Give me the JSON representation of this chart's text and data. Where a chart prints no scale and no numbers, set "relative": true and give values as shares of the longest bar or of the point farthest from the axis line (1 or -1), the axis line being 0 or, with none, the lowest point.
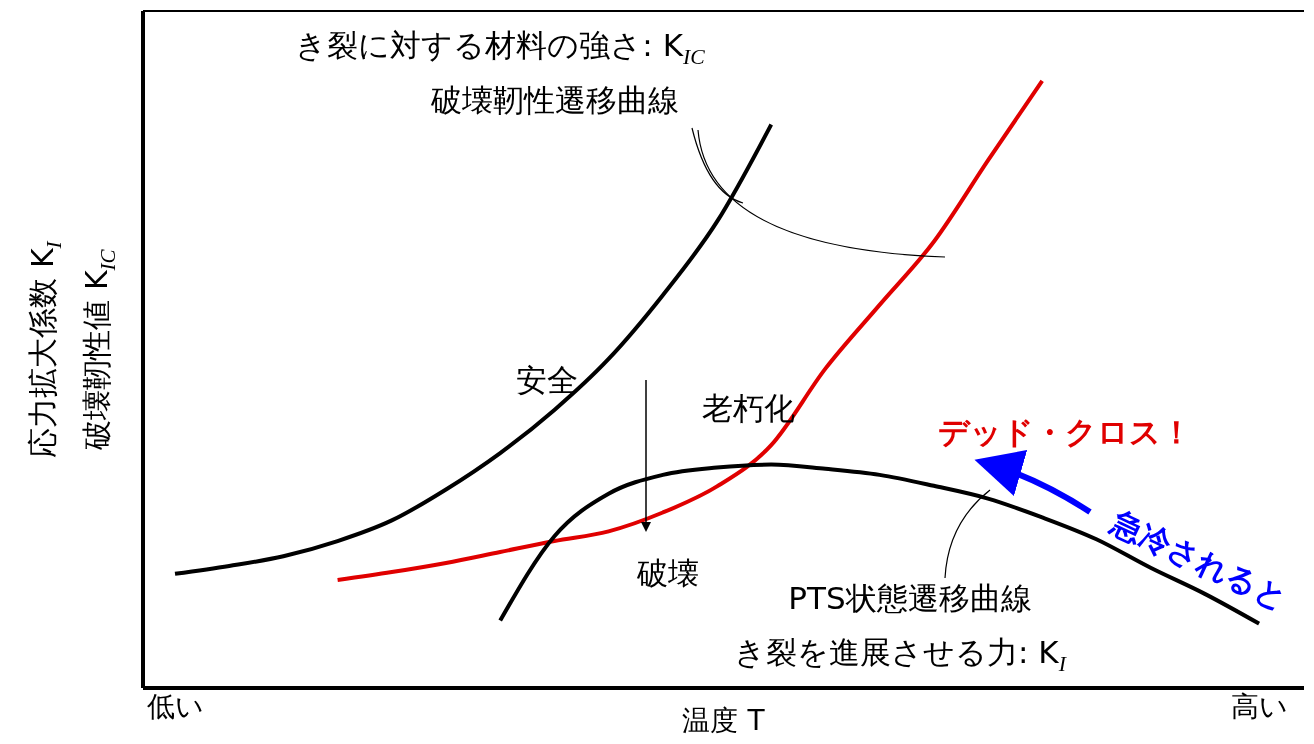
{
  "chart_data": {
    "type": "line",
    "relative": true,
    "xlabel": "温度 T",
    "ylabel": "応力拡大係数 K$_{I}$\n破壊靭性値 K$_{IC}$",
    "categories": [
      "低い",
      null,
      null,
      null,
      null,
      null,
      null,
      null,
      null,
      null,
      null,
      null,
      null,
      null,
      null,
      null,
      null,
      null,
      null,
      null,
      "高い"
    ],
    "series": [
      {
        "color": "#000000",
        "values": [
          0.188,
          0.201,
          0.217,
          0.242,
          0.276,
          0.327,
          0.387,
          0.458,
          0.542,
          0.647,
          0.768,
          0.928,
          null,
          null,
          null,
          null,
          null,
          null,
          null,
          null,
          null
        ]
      },
      {
        "color": "#e00000",
        "values": [
          null,
          null,
          null,
          0.178,
          0.191,
          0.206,
          0.224,
          0.242,
          0.258,
          0.289,
          0.332,
          0.4,
          0.526,
          0.631,
          0.735,
          0.869,
          1,
          null,
          null,
          null,
          null
        ]
      },
      {
        "color": "#000000",
        "values": [
          null,
          null,
          null,
          null,
          null,
          null,
          0.111,
          0.25,
          0.32,
          0.351,
          0.363,
          0.368,
          0.361,
          0.351,
          0.333,
          0.312,
          0.281,
          0.245,
          0.198,
          0.155,
          0.106
        ]
      }
    ],
    "annotations": [
      "き裂に対する材料の強さ: K$_{IC}$",
      "破壊靭性遷移曲線",
      "安全",
      "老朽化",
      "破壊",
      "デッド・クロス！",
      "急冷されると",
      "PTS状態遷移曲線",
      "き裂を進展させる力: K$_{I}$"
    ]
  }
}
